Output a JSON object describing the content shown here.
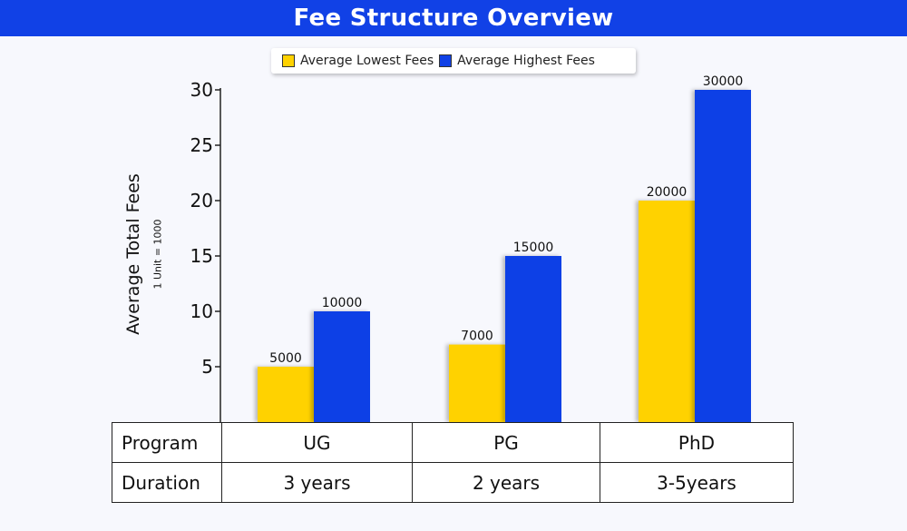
{
  "title": "Fee Structure Overview",
  "colors": {
    "title_bg": "#1141e6",
    "lowest": "#ffd200",
    "highest": "#1141e6"
  },
  "legend": [
    {
      "label": "Average Lowest Fees",
      "color": "#ffd200"
    },
    {
      "label": "Average Highest Fees",
      "color": "#1141e6"
    }
  ],
  "chart_data": {
    "type": "bar",
    "title": "Fee Structure Overview",
    "categories": [
      "UG",
      "PG",
      "PhD"
    ],
    "series": [
      {
        "name": "Average Lowest Fees",
        "values": [
          5,
          7,
          20
        ],
        "labels": [
          "5000",
          "7000",
          "20000"
        ],
        "color": "#ffd200"
      },
      {
        "name": "Average Highest Fees",
        "values": [
          10,
          15,
          30
        ],
        "labels": [
          "10000",
          "15000",
          "30000"
        ],
        "color": "#1141e6"
      }
    ],
    "ylabel": "Average Total Fees",
    "ylabel_note": "1 Unit = 1000",
    "ylim": [
      0,
      30
    ],
    "yticks": [
      5,
      10,
      15,
      20,
      25,
      30
    ],
    "grid": false,
    "legend_position": "top-center"
  },
  "table": {
    "rows": [
      {
        "header": "Program",
        "cells": [
          "UG",
          "PG",
          "PhD"
        ]
      },
      {
        "header": "Duration",
        "cells": [
          "3 years",
          "2 years",
          "3-5years"
        ]
      }
    ]
  }
}
